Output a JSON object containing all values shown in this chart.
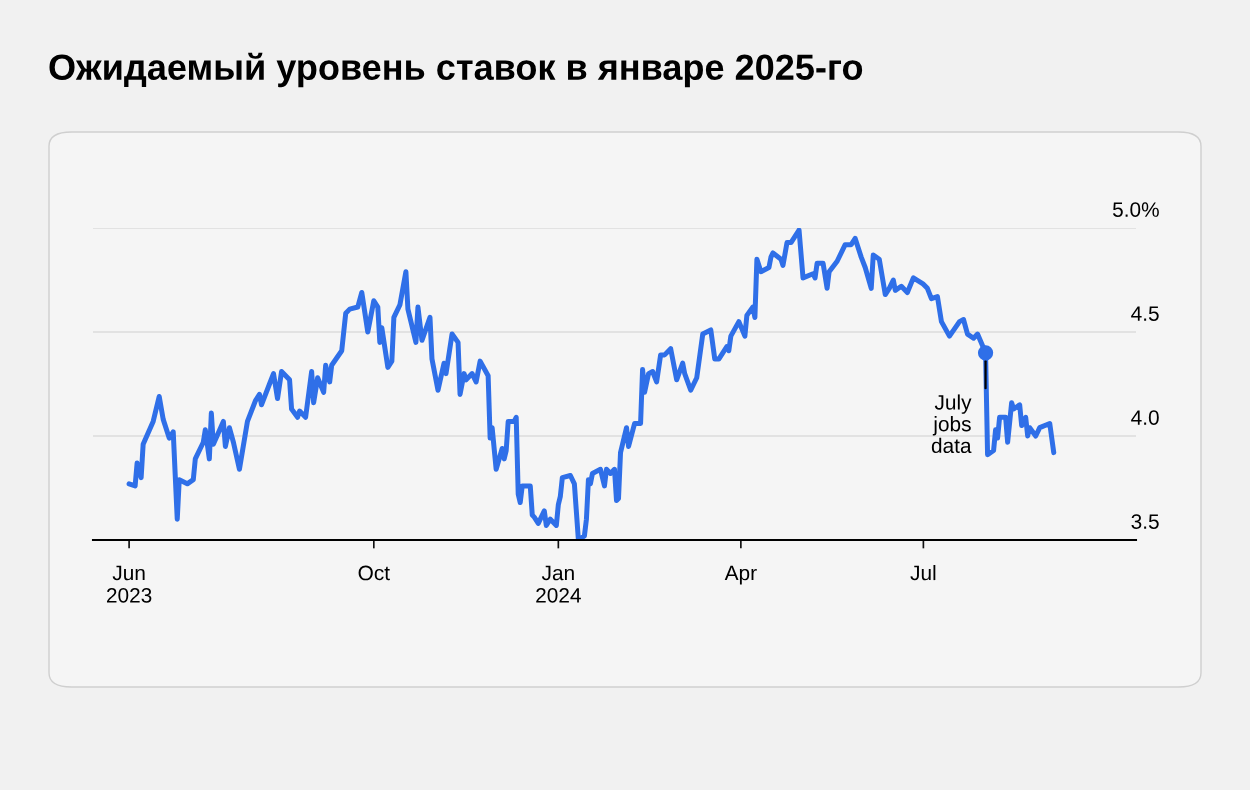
{
  "chart_data": {
    "type": "line",
    "title": "Ожидаемый уровень ставок в январе 2025-го",
    "x": [
      "2023-06-01",
      "2023-06-04",
      "2023-06-05",
      "2023-06-07",
      "2023-06-08",
      "2023-06-13",
      "2023-06-16",
      "2023-06-18",
      "2023-06-21",
      "2023-06-23",
      "2023-06-25",
      "2023-06-26",
      "2023-06-30",
      "2023-07-03",
      "2023-07-04",
      "2023-07-08",
      "2023-07-09",
      "2023-07-11",
      "2023-07-12",
      "2023-07-13",
      "2023-07-18",
      "2023-07-19",
      "2023-07-21",
      "2023-07-23",
      "2023-07-26",
      "2023-07-30",
      "2023-08-03",
      "2023-08-05",
      "2023-08-06",
      "2023-08-10",
      "2023-08-12",
      "2023-08-14",
      "2023-08-16",
      "2023-08-20",
      "2023-08-21",
      "2023-08-24",
      "2023-08-25",
      "2023-08-28",
      "2023-08-31",
      "2023-09-01",
      "2023-09-03",
      "2023-09-06",
      "2023-09-07",
      "2023-09-09",
      "2023-09-10",
      "2023-09-15",
      "2023-09-17",
      "2023-09-19",
      "2023-09-23",
      "2023-09-25",
      "2023-09-28",
      "2023-10-01",
      "2023-10-03",
      "2023-10-04",
      "2023-10-05",
      "2023-10-08",
      "2023-10-10",
      "2023-10-11",
      "2023-10-14",
      "2023-10-17",
      "2023-10-18",
      "2023-10-22",
      "2023-10-23",
      "2023-10-25",
      "2023-10-29",
      "2023-10-30",
      "2023-11-02",
      "2023-11-05",
      "2023-11-06",
      "2023-11-09",
      "2023-11-12",
      "2023-11-13",
      "2023-11-15",
      "2023-11-16",
      "2023-11-19",
      "2023-11-21",
      "2023-11-23",
      "2023-11-27",
      "2023-11-28",
      "2023-11-29",
      "2023-12-01",
      "2023-12-04",
      "2023-12-05",
      "2023-12-06",
      "2023-12-07",
      "2023-12-10",
      "2023-12-11",
      "2023-12-12",
      "2023-12-13",
      "2023-12-14",
      "2023-12-18",
      "2023-12-19",
      "2023-12-20",
      "2023-12-22",
      "2023-12-25",
      "2023-12-26",
      "2023-12-28",
      "2023-12-31",
      "2024-01-01",
      "2024-01-02",
      "2024-01-03",
      "2024-01-07",
      "2024-01-09",
      "2024-01-11",
      "2024-01-14",
      "2024-01-15",
      "2024-01-16",
      "2024-01-17",
      "2024-01-18",
      "2024-01-22",
      "2024-01-23",
      "2024-01-24",
      "2024-01-25",
      "2024-01-27",
      "2024-01-29",
      "2024-01-30",
      "2024-01-31",
      "2024-02-01",
      "2024-02-04",
      "2024-02-05",
      "2024-02-08",
      "2024-02-11",
      "2024-02-12",
      "2024-02-13",
      "2024-02-15",
      "2024-02-17",
      "2024-02-19",
      "2024-02-21",
      "2024-02-23",
      "2024-02-26",
      "2024-02-29",
      "2024-03-03",
      "2024-03-04",
      "2024-03-07",
      "2024-03-10",
      "2024-03-13",
      "2024-03-17",
      "2024-03-19",
      "2024-03-21",
      "2024-03-25",
      "2024-03-26",
      "2024-03-27",
      "2024-03-31",
      "2024-04-03",
      "2024-04-04",
      "2024-04-07",
      "2024-04-08",
      "2024-04-09",
      "2024-04-11",
      "2024-04-15",
      "2024-04-16",
      "2024-04-17",
      "2024-04-21",
      "2024-04-22",
      "2024-04-24",
      "2024-04-26",
      "2024-04-30",
      "2024-05-02",
      "2024-05-07",
      "2024-05-08",
      "2024-05-09",
      "2024-05-12",
      "2024-05-14",
      "2024-05-15",
      "2024-05-19",
      "2024-05-23",
      "2024-05-26",
      "2024-05-28",
      "2024-05-31",
      "2024-06-02",
      "2024-06-05",
      "2024-06-06",
      "2024-06-09",
      "2024-06-12",
      "2024-06-14",
      "2024-06-16",
      "2024-06-17",
      "2024-06-20",
      "2024-06-23",
      "2024-06-26",
      "2024-07-01",
      "2024-07-03",
      "2024-07-05",
      "2024-07-08",
      "2024-07-10",
      "2024-07-14",
      "2024-07-19",
      "2024-07-21",
      "2024-07-23",
      "2024-07-26",
      "2024-07-28",
      "2024-08-01",
      "2024-08-02",
      "2024-08-05",
      "2024-08-06",
      "2024-08-07",
      "2024-08-08",
      "2024-08-11",
      "2024-08-12",
      "2024-08-14",
      "2024-08-15",
      "2024-08-18",
      "2024-08-19",
      "2024-08-21",
      "2024-08-22",
      "2024-08-23",
      "2024-08-26",
      "2024-08-28",
      "2024-09-02",
      "2024-09-04"
    ],
    "series": [
      {
        "color": "#2f6fe8",
        "values": [
          3.77,
          3.76,
          3.87,
          3.8,
          3.96,
          4.07,
          4.19,
          4.08,
          3.99,
          4.02,
          3.6,
          3.79,
          3.77,
          3.79,
          3.89,
          3.97,
          4.03,
          3.89,
          4.11,
          3.96,
          4.07,
          3.95,
          4.04,
          3.97,
          3.84,
          4.07,
          4.17,
          4.2,
          4.15,
          4.25,
          4.3,
          4.18,
          4.31,
          4.27,
          4.13,
          4.09,
          4.12,
          4.09,
          4.31,
          4.16,
          4.28,
          4.21,
          4.34,
          4.26,
          4.34,
          4.41,
          4.59,
          4.61,
          4.62,
          4.69,
          4.5,
          4.65,
          4.62,
          4.45,
          4.52,
          4.33,
          4.36,
          4.57,
          4.63,
          4.79,
          4.61,
          4.45,
          4.62,
          4.46,
          4.57,
          4.37,
          4.22,
          4.35,
          4.3,
          4.49,
          4.45,
          4.2,
          4.3,
          4.27,
          4.3,
          4.26,
          4.36,
          4.29,
          3.99,
          4.04,
          3.84,
          3.94,
          3.89,
          3.93,
          4.07,
          4.07,
          4.09,
          3.72,
          3.68,
          3.76,
          3.76,
          3.62,
          3.61,
          3.58,
          3.64,
          3.57,
          3.6,
          3.57,
          3.67,
          3.71,
          3.8,
          3.81,
          3.77,
          3.5,
          3.52,
          3.6,
          3.79,
          3.77,
          3.82,
          3.84,
          3.8,
          3.76,
          3.84,
          3.82,
          3.84,
          3.69,
          3.7,
          3.92,
          4.04,
          3.95,
          4.06,
          4.06,
          4.32,
          4.21,
          4.3,
          4.31,
          4.26,
          4.39,
          4.39,
          4.42,
          4.27,
          4.35,
          4.3,
          4.22,
          4.28,
          4.49,
          4.51,
          4.37,
          4.37,
          4.43,
          4.41,
          4.48,
          4.55,
          4.48,
          4.58,
          4.62,
          4.57,
          4.85,
          4.79,
          4.81,
          4.86,
          4.88,
          4.85,
          4.82,
          4.93,
          4.93,
          4.99,
          4.76,
          4.78,
          4.76,
          4.83,
          4.83,
          4.71,
          4.79,
          4.84,
          4.92,
          4.92,
          4.95,
          4.86,
          4.81,
          4.71,
          4.87,
          4.85,
          4.68,
          4.71,
          4.75,
          4.7,
          4.72,
          4.69,
          4.76,
          4.73,
          4.71,
          4.66,
          4.67,
          4.55,
          4.48,
          4.55,
          4.56,
          4.49,
          4.47,
          4.49,
          4.4,
          3.91,
          3.93,
          4.03,
          3.99,
          4.09,
          4.09,
          3.97,
          4.16,
          4.13,
          4.15,
          4.05,
          4.09,
          4.0,
          4.04,
          4.0,
          4.04,
          4.06,
          3.92
        ]
      }
    ],
    "xlim": [
      "2023-05-14",
      "2024-10-15"
    ],
    "xticks": [
      {
        "value": "2023-06-01",
        "label": "Jun\n2023"
      },
      {
        "value": "2023-10-01",
        "label": "Oct"
      },
      {
        "value": "2024-01-01",
        "label": "Jan\n2024"
      },
      {
        "value": "2024-04-01",
        "label": "Apr"
      },
      {
        "value": "2024-07-01",
        "label": "Jul"
      }
    ],
    "ylim": [
      3.5,
      5.0
    ],
    "yticks": [
      {
        "value": 5.0,
        "label": "5.0%"
      },
      {
        "value": 4.5,
        "label": "4.5"
      },
      {
        "value": 4.0,
        "label": "4.0"
      },
      {
        "value": 3.5,
        "label": "3.5"
      }
    ],
    "grid": "y",
    "annotations": [
      {
        "text": "July\njobs\ndata",
        "x": "2024-08-01",
        "y": 4.4
      }
    ]
  }
}
